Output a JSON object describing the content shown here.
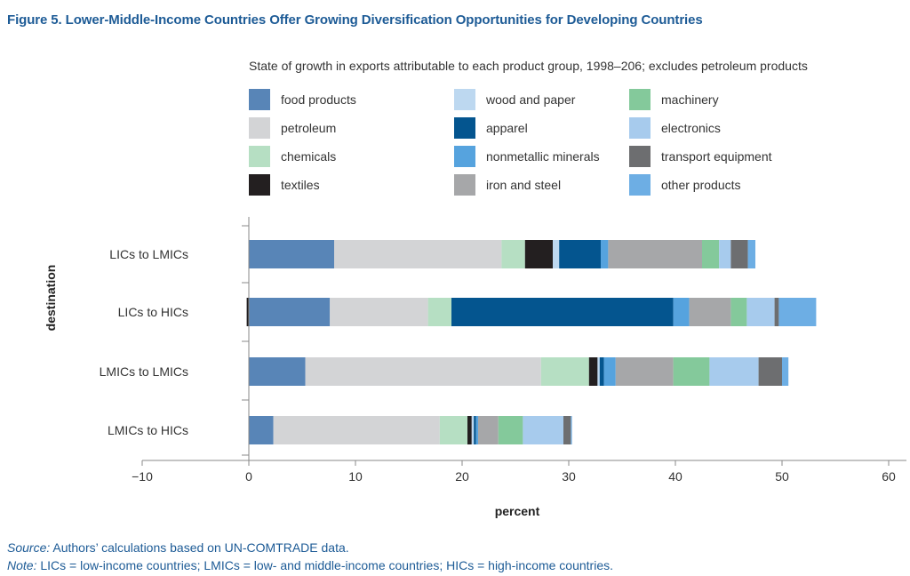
{
  "title": "Figure 5. Lower-Middle-Income Countries Offer Growing Diversification Opportunities for Developing Countries",
  "chart_data": {
    "type": "bar",
    "orientation": "horizontal",
    "stacked": true,
    "subtitle": "State of growth in exports attributable to each product group, 1998–206; excludes petroleum products",
    "xlabel": "percent",
    "ylabel": "destination",
    "xlim": [
      -10,
      60
    ],
    "xticks": [
      "−10",
      "0",
      "10",
      "20",
      "30",
      "40",
      "50",
      "60"
    ],
    "xtick_values": [
      -10,
      0,
      10,
      20,
      30,
      40,
      50,
      60
    ],
    "categories": [
      "LICs to LMICs",
      "LICs to HICs",
      "LMICs to LMICs",
      "LMICs to HICs"
    ],
    "series": [
      {
        "name": "food products",
        "color": "#5885b7",
        "values": [
          8.0,
          7.6,
          5.3,
          2.3
        ]
      },
      {
        "name": "petroleum",
        "color": "#d3d4d6",
        "values": [
          15.7,
          9.2,
          22.1,
          15.6
        ]
      },
      {
        "name": "chemicals",
        "color": "#b6dfc3",
        "values": [
          2.2,
          2.2,
          4.5,
          2.6
        ]
      },
      {
        "name": "textiles",
        "color": "#231f20",
        "values": [
          2.6,
          -0.2,
          0.8,
          0.4
        ]
      },
      {
        "name": "wood and paper",
        "color": "#bdd8f0",
        "values": [
          0.6,
          0.0,
          0.2,
          0.2
        ]
      },
      {
        "name": "apparel",
        "color": "#04558f",
        "values": [
          3.9,
          20.8,
          0.4,
          0.2
        ]
      },
      {
        "name": "nonmetallic minerals",
        "color": "#56a3de",
        "values": [
          0.7,
          1.5,
          1.1,
          0.2
        ]
      },
      {
        "name": "iron and steel",
        "color": "#a6a7a9",
        "values": [
          8.8,
          3.9,
          5.4,
          1.9
        ]
      },
      {
        "name": "machinery",
        "color": "#84c99b",
        "values": [
          1.6,
          1.5,
          3.4,
          2.3
        ]
      },
      {
        "name": "electronics",
        "color": "#a7cbed",
        "values": [
          1.1,
          2.6,
          4.6,
          3.8
        ]
      },
      {
        "name": "transport equipment",
        "color": "#6d6e70",
        "values": [
          1.6,
          0.4,
          2.2,
          0.7
        ]
      },
      {
        "name": "other products",
        "color": "#6daee4",
        "values": [
          0.7,
          3.5,
          0.6,
          0.1
        ]
      }
    ]
  },
  "source": {
    "label": "Source:",
    "text": " Authors’ calculations based on UN-COMTRADE data."
  },
  "note": {
    "label": "Note:",
    "text": " LICs = low-income countries; LMICs = low- and middle-income countries; HICs = high-income countries."
  }
}
